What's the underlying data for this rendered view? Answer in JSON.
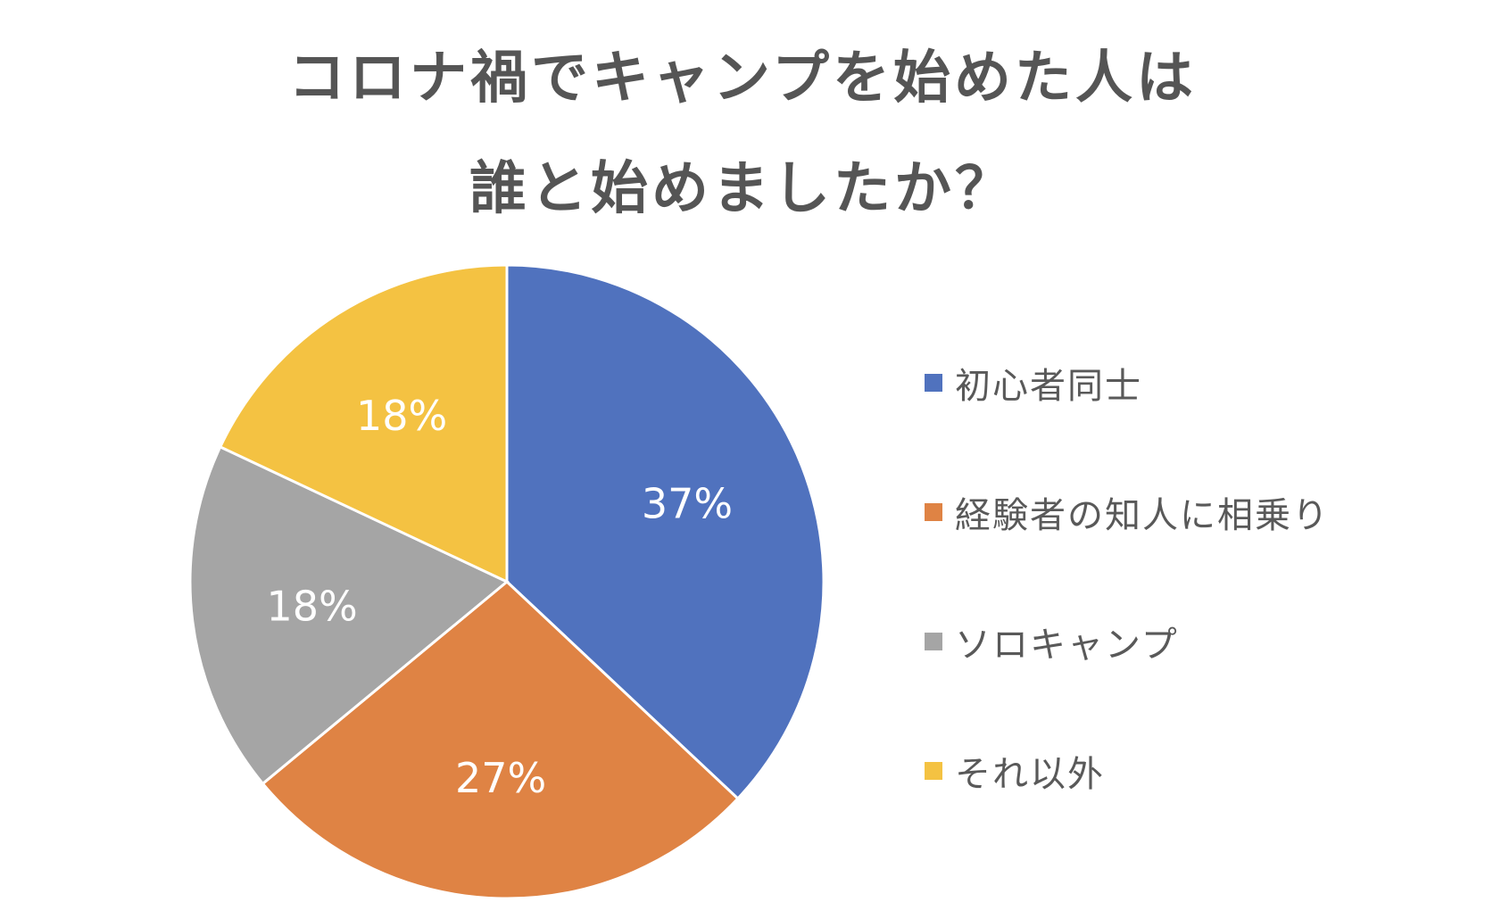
{
  "chart_data": {
    "type": "pie",
    "title_lines": [
      "コロナ禍でキャンプを始めた人は",
      "誰と始めましたか？"
    ],
    "categories": [
      "初心者同士",
      "経験者の知人に相乗り",
      "ソロキャンプ",
      "それ以外"
    ],
    "values": [
      37,
      27,
      18,
      18
    ],
    "value_labels": [
      "37%",
      "27%",
      "18%",
      "18%"
    ],
    "colors": [
      "#5072BE",
      "#DF8344",
      "#A5A5A5",
      "#F4C242"
    ],
    "legend_position": "right",
    "start_angle": "12 o'clock",
    "direction": "clockwise"
  }
}
